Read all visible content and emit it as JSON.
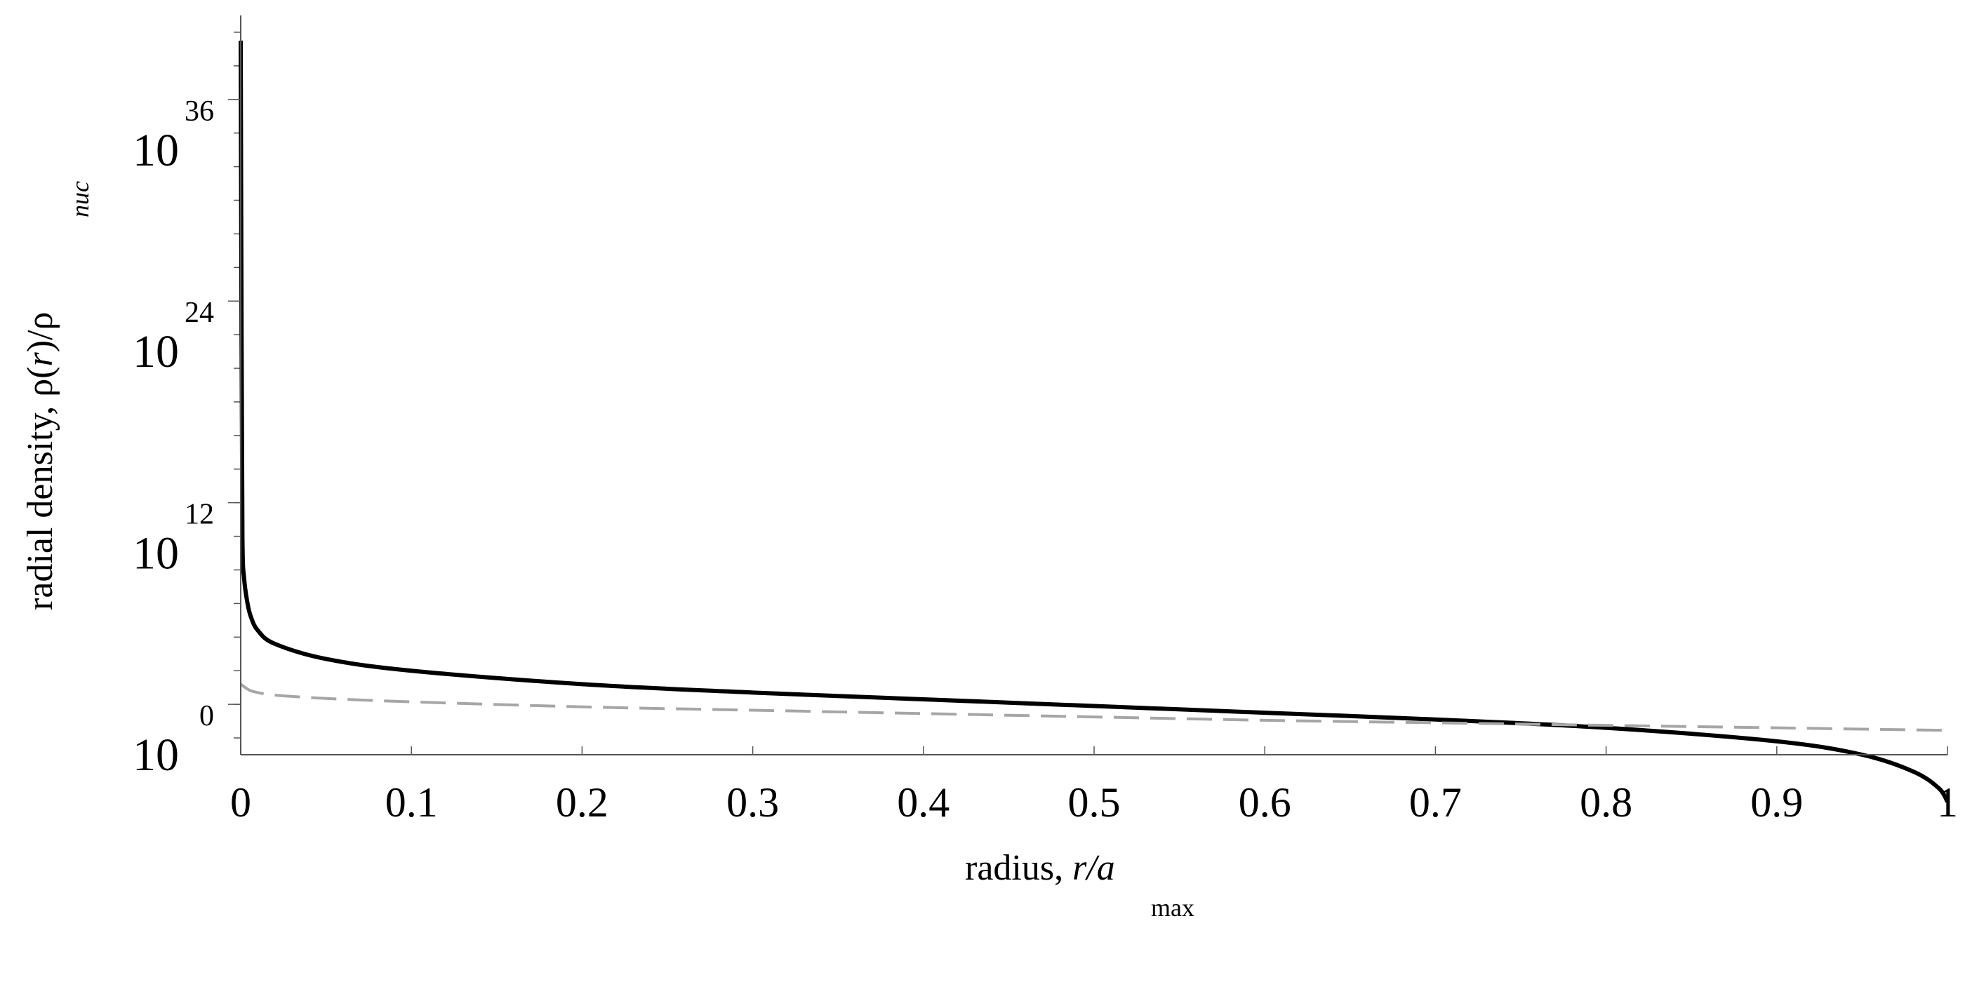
{
  "chart_data": {
    "type": "line",
    "xlabel": {
      "main": "radius, ",
      "var": "r/a",
      "sub": "max"
    },
    "ylabel": {
      "main": "radial density, ρ(",
      "var": "r",
      "rest": ")/ρ",
      "sub": "nuc"
    },
    "xlim": [
      0,
      1
    ],
    "ylim_log10": [
      -3,
      41
    ],
    "y_scale": "log",
    "x_ticks": [
      "0",
      "0.1",
      "0.2",
      "0.3",
      "0.4",
      "0.5",
      "0.6",
      "0.7",
      "0.8",
      "0.9",
      "1"
    ],
    "y_ticks": [
      {
        "base": "10",
        "exp": "0",
        "log10": 0
      },
      {
        "base": "10",
        "exp": "12",
        "log10": 12
      },
      {
        "base": "10",
        "exp": "24",
        "log10": 24
      },
      {
        "base": "10",
        "exp": "36",
        "log10": 36
      }
    ],
    "series": [
      {
        "style": "solid",
        "color": "#000000",
        "x": [
          0,
          0.0005,
          0.001,
          0.002,
          0.004,
          0.006,
          0.01,
          0.02,
          0.05,
          0.1,
          0.2,
          0.3,
          0.4,
          0.5,
          0.6,
          0.7,
          0.8,
          0.9,
          0.95,
          0.98,
          0.995,
          1.0
        ],
        "log10_y": [
          39.5,
          22.0,
          10.0,
          7.5,
          6.0,
          5.2,
          4.4,
          3.6,
          2.7,
          2.0,
          1.2,
          0.7,
          0.3,
          -0.1,
          -0.5,
          -0.9,
          -1.4,
          -2.2,
          -3.0,
          -4.0,
          -5.0,
          -5.8
        ]
      },
      {
        "style": "dashed",
        "color": "#a6a6a6",
        "x": [
          0,
          0.005,
          0.01,
          0.02,
          0.05,
          0.1,
          0.2,
          0.3,
          0.4,
          0.5,
          0.6,
          0.7,
          0.8,
          0.9,
          1.0
        ],
        "log10_y": [
          1.2,
          0.85,
          0.7,
          0.55,
          0.35,
          0.15,
          -0.15,
          -0.35,
          -0.55,
          -0.75,
          -0.95,
          -1.1,
          -1.25,
          -1.4,
          -1.55
        ]
      }
    ]
  }
}
